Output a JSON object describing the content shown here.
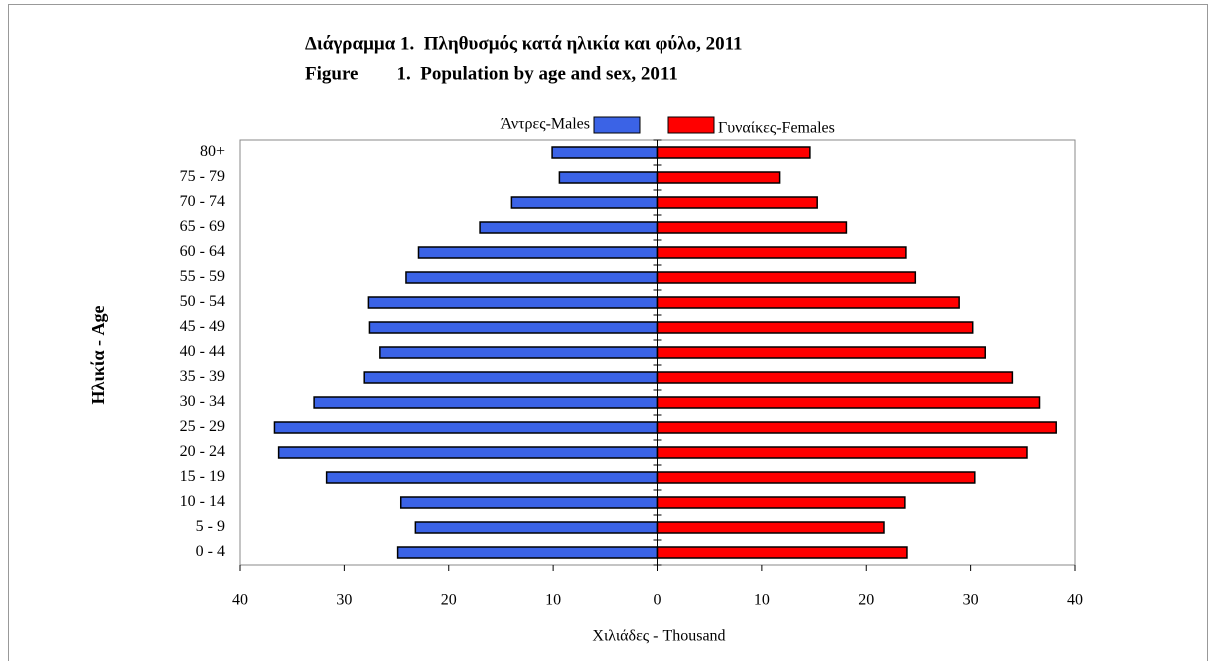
{
  "chart_data": {
    "type": "bar",
    "orientation": "horizontal",
    "title": "Διάγραμμα 1.  Πληθυσμός κατά ηλικία και φύλο, 2011",
    "subtitle": "Figure        1.  Population by age and sex, 2011",
    "y_label": "Ηλικία - Age",
    "x_label": "Χιλιάδες - Thousand",
    "categories": [
      "0 - 4",
      "5 - 9",
      "10 - 14",
      "15 - 19",
      "20 - 24",
      "25 - 29",
      "30 - 34",
      "35 - 39",
      "40 - 44",
      "45 - 49",
      "50 - 54",
      "55 - 59",
      "60 - 64",
      "65 - 69",
      "70 - 74",
      "75 - 79",
      "80+"
    ],
    "series": [
      {
        "name": "Άντρες-Males",
        "color": "#3b63e6",
        "values": [
          -24.9,
          -23.2,
          -24.6,
          -31.7,
          -36.3,
          -36.7,
          -32.9,
          -28.1,
          -26.6,
          -27.6,
          -27.7,
          -24.1,
          -22.9,
          -17.0,
          -14.0,
          -9.4,
          -10.1
        ]
      },
      {
        "name": "Γυναίκες-Females",
        "color": "#ff0000",
        "values": [
          23.9,
          21.7,
          23.7,
          30.4,
          35.4,
          38.2,
          36.6,
          34.0,
          31.4,
          30.2,
          28.9,
          24.7,
          23.8,
          18.1,
          15.3,
          11.7,
          14.6
        ]
      }
    ],
    "xlim": [
      -40,
      40
    ],
    "xticks": [
      {
        "value": -40,
        "label": "40"
      },
      {
        "value": -30,
        "label": "30"
      },
      {
        "value": -20,
        "label": "20"
      },
      {
        "value": -10,
        "label": "10"
      },
      0,
      10,
      20,
      30,
      40
    ],
    "grid": false
  }
}
